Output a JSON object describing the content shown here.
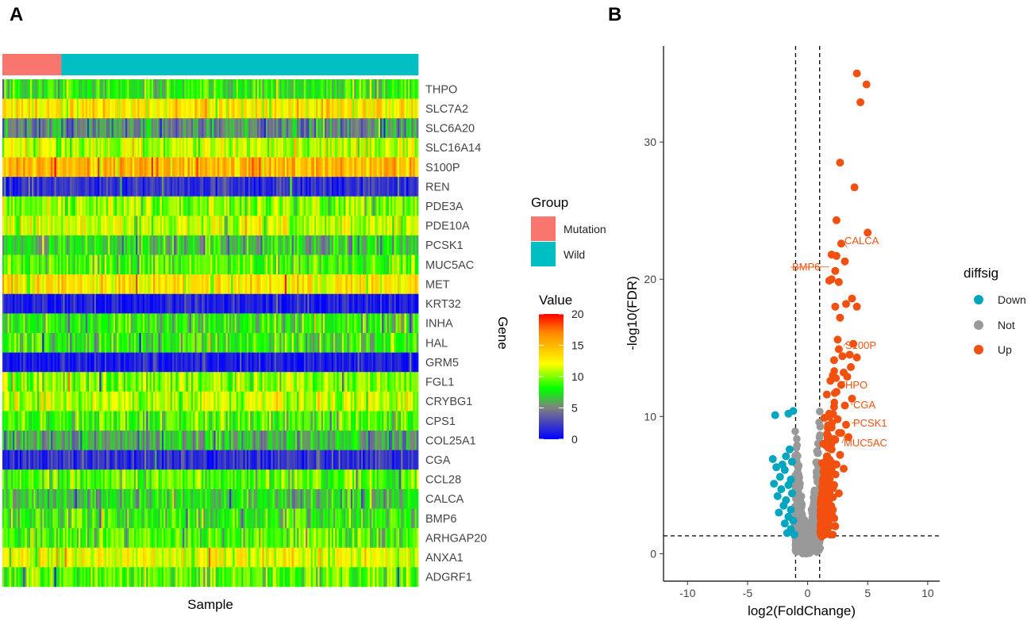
{
  "panels": {
    "a": "A",
    "b": "B"
  },
  "chart_data": [
    {
      "type": "heatmap",
      "panel": "A",
      "xlabel": "Sample",
      "ylabel": "Gene",
      "n_samples": 240,
      "groups": [
        {
          "name": "Mutation",
          "count": 34,
          "color": "#F8766D"
        },
        {
          "name": "Wild",
          "count": 206,
          "color": "#00BFC4"
        }
      ],
      "genes": [
        "THPO",
        "SLC7A2",
        "SLC6A20",
        "SLC16A14",
        "S100P",
        "REN",
        "PDE3A",
        "PDE10A",
        "PCSK1",
        "MUC5AC",
        "MET",
        "KRT32",
        "INHA",
        "HAL",
        "GRM5",
        "FGL1",
        "CRYBG1",
        "CPS1",
        "COL25A1",
        "CGA",
        "CCL28",
        "CALCA",
        "BMP6",
        "ARHGAP20",
        "ANXA1",
        "ADGRF1"
      ],
      "typical_values": [
        8,
        13,
        5,
        11,
        15,
        2,
        10,
        11,
        7,
        9,
        13,
        1,
        8,
        8,
        1,
        10,
        11,
        9,
        6,
        2,
        9,
        7,
        8,
        9,
        12,
        9
      ],
      "value_range": [
        0,
        20
      ],
      "legend": {
        "group_title": "Group",
        "value_title": "Value",
        "value_ticks": [
          "0",
          "5",
          "10",
          "15",
          "20"
        ],
        "colors": [
          "#0000ff",
          "#00ff00",
          "#ffff00",
          "#ff0000"
        ]
      }
    },
    {
      "type": "scatter",
      "panel": "B",
      "xlabel": "log2(FoldChange)",
      "ylabel": "-log10(FDR)",
      "xlim": [
        -12,
        11
      ],
      "ylim": [
        -2,
        37
      ],
      "xticks": [
        "-10",
        "-5",
        "0",
        "5",
        "10"
      ],
      "yticks": [
        "0",
        "10",
        "20",
        "30"
      ],
      "thresholds": {
        "x": [
          -1,
          1
        ],
        "y": 1.3
      },
      "legend": {
        "title": "diffsig",
        "items": [
          {
            "label": "Down",
            "color": "#00A5C0"
          },
          {
            "label": "Not",
            "color": "#999999"
          },
          {
            "label": "Up",
            "color": "#F2500E"
          }
        ]
      },
      "up_points": [
        [
          4.1,
          35.0
        ],
        [
          4.9,
          34.2
        ],
        [
          4.4,
          32.9
        ],
        [
          2.7,
          28.5
        ],
        [
          3.9,
          26.7
        ],
        [
          2.4,
          24.3
        ],
        [
          5.0,
          23.4
        ],
        [
          2.8,
          22.6
        ],
        [
          2.0,
          21.8
        ],
        [
          2.4,
          21.7
        ],
        [
          3.1,
          21.3
        ],
        [
          2.3,
          20.6
        ],
        [
          2.0,
          20.0
        ],
        [
          2.6,
          19.8
        ],
        [
          1.8,
          19.9
        ],
        [
          3.7,
          18.6
        ],
        [
          2.3,
          18.0
        ],
        [
          3.2,
          18.2
        ],
        [
          4.1,
          18.0
        ],
        [
          2.7,
          17.2
        ],
        [
          2.5,
          15.6
        ],
        [
          3.8,
          15.3
        ],
        [
          2.6,
          14.9
        ],
        [
          3.5,
          14.5
        ],
        [
          2.9,
          14.4
        ],
        [
          2.2,
          14.1
        ],
        [
          4.1,
          14.3
        ],
        [
          3.6,
          13.6
        ],
        [
          3.0,
          13.2
        ],
        [
          2.1,
          13.0
        ],
        [
          3.3,
          12.9
        ],
        [
          2.8,
          12.3
        ],
        [
          1.9,
          12.6
        ],
        [
          2.4,
          11.8
        ],
        [
          3.7,
          11.3
        ],
        [
          1.6,
          11.6
        ],
        [
          3.1,
          10.8
        ],
        [
          2.2,
          10.7
        ],
        [
          1.8,
          10.2
        ],
        [
          2.5,
          9.8
        ],
        [
          3.2,
          9.4
        ],
        [
          1.4,
          9.9
        ],
        [
          2.0,
          9.2
        ],
        [
          2.8,
          8.8
        ],
        [
          1.7,
          8.6
        ],
        [
          2.3,
          8.3
        ],
        [
          3.4,
          8.5
        ],
        [
          1.3,
          8.0
        ],
        [
          2.0,
          7.6
        ],
        [
          2.7,
          7.2
        ],
        [
          1.6,
          7.1
        ],
        [
          2.4,
          6.5
        ],
        [
          1.2,
          6.6
        ],
        [
          1.9,
          6.0
        ],
        [
          3.0,
          6.2
        ],
        [
          1.5,
          5.5
        ],
        [
          2.2,
          5.0
        ],
        [
          1.3,
          4.8
        ],
        [
          1.8,
          4.2
        ],
        [
          2.6,
          4.4
        ],
        [
          1.4,
          3.6
        ],
        [
          2.1,
          3.2
        ],
        [
          1.2,
          2.8
        ],
        [
          1.7,
          2.4
        ],
        [
          2.3,
          2.0
        ],
        [
          1.4,
          1.8
        ],
        [
          1.9,
          1.4
        ],
        [
          1.2,
          1.3
        ]
      ],
      "down_points": [
        [
          -1.2,
          10.4
        ],
        [
          -1.6,
          10.2
        ],
        [
          -2.7,
          10.1
        ],
        [
          -1.5,
          7.6
        ],
        [
          -1.8,
          7.1
        ],
        [
          -2.9,
          6.9
        ],
        [
          -1.3,
          6.7
        ],
        [
          -2.1,
          6.5
        ],
        [
          -2.6,
          6.3
        ],
        [
          -1.9,
          6.1
        ],
        [
          -2.3,
          5.6
        ],
        [
          -1.4,
          5.4
        ],
        [
          -2.8,
          5.1
        ],
        [
          -1.6,
          5.0
        ],
        [
          -2.2,
          4.7
        ],
        [
          -1.3,
          4.4
        ],
        [
          -2.5,
          4.2
        ],
        [
          -1.8,
          3.9
        ],
        [
          -2.0,
          3.5
        ],
        [
          -1.4,
          3.2
        ],
        [
          -2.4,
          3.0
        ],
        [
          -1.6,
          2.7
        ],
        [
          -1.2,
          2.4
        ],
        [
          -1.9,
          2.2
        ],
        [
          -1.4,
          1.8
        ],
        [
          -1.7,
          1.5
        ],
        [
          -1.1,
          1.4
        ]
      ],
      "annotations": [
        {
          "label": "CALCA",
          "x": 3.3,
          "y": 22.3
        },
        {
          "label": "BMP6",
          "x": 1.8,
          "y": 20.9
        },
        {
          "label": "S100P",
          "x": 3.4,
          "y": 15.5
        },
        {
          "label": "THPO",
          "x": 3.0,
          "y": 12.2
        },
        {
          "label": "CGA",
          "x": 3.7,
          "y": 11.3
        },
        {
          "label": "PCSK1",
          "x": 3.9,
          "y": 9.6
        },
        {
          "label": "MUC5AC",
          "x": 3.1,
          "y": 8.6
        }
      ]
    }
  ]
}
